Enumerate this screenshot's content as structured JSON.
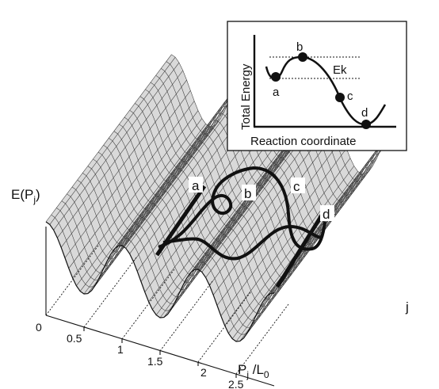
{
  "figure": {
    "y_axis_label": {
      "main": "E(P",
      "sub": "j",
      "close": ")"
    },
    "x_axis_label": {
      "main": "P",
      "sub": "j",
      "mid": " /L",
      "sub2": "0"
    },
    "depth_axis_label": "j",
    "x_ticks": [
      "0",
      "0.5",
      "1",
      "1.5",
      "2",
      "2.5"
    ],
    "path_labels": [
      "a",
      "b",
      "c",
      "d"
    ]
  },
  "inset": {
    "y_label": "Total Energy",
    "x_label": "Reaction coordinate",
    "energy_label": "Ek",
    "point_labels": [
      "a",
      "b",
      "c",
      "d"
    ]
  },
  "colors": {
    "surface": "#d8d8d8",
    "line": "#111111",
    "mesh": "#333333"
  }
}
